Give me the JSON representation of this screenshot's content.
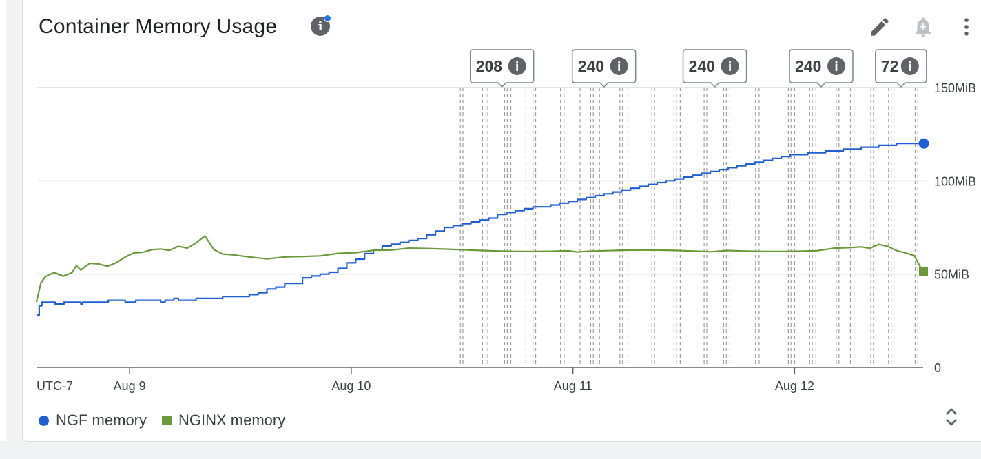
{
  "card": {
    "title": "Container Memory Usage",
    "info_icon": "info-icon"
  },
  "toolbar": {
    "edit_icon": "pencil-icon",
    "alert_icon": "add-alert-bell-icon",
    "more_icon": "more-vert-icon"
  },
  "legend": {
    "items": [
      {
        "label": "NGF memory",
        "color": "#1f5fd6",
        "shape": "circle"
      },
      {
        "label": "NGINX memory",
        "color": "#6a9a38",
        "shape": "square"
      }
    ],
    "expand_icon": "expand-collapse-icon"
  },
  "chart_data": {
    "type": "line",
    "title": "Container Memory Usage",
    "timezone_label": "UTC-7",
    "x_unit": "hours since Aug 8 19:45 (UTC-7)",
    "xlim": [
      0,
      100
    ],
    "x_ticks": [
      {
        "label": "Aug 9",
        "x": 10.5
      },
      {
        "label": "Aug 10",
        "x": 35.5
      },
      {
        "label": "Aug 11",
        "x": 60.5
      },
      {
        "label": "Aug 12",
        "x": 85.5
      }
    ],
    "ylim": [
      0,
      150
    ],
    "y_ticks": [
      {
        "label": "0",
        "value": 0
      },
      {
        "label": "50MiB",
        "value": 50
      },
      {
        "label": "100MiB",
        "value": 100
      },
      {
        "label": "150MiB",
        "value": 150
      }
    ],
    "grid": true,
    "y_axis_side": "right",
    "legend_position": "bottom-left",
    "series": [
      {
        "name": "NGF memory",
        "color": "#1f5fd6",
        "end_marker": "circle",
        "points": [
          [
            0,
            28
          ],
          [
            0.3,
            33
          ],
          [
            0.6,
            35
          ],
          [
            2,
            35
          ],
          [
            2.1,
            34
          ],
          [
            3,
            34
          ],
          [
            3.1,
            35
          ],
          [
            4,
            35
          ],
          [
            5,
            34
          ],
          [
            5.2,
            35
          ],
          [
            6.5,
            35
          ],
          [
            7,
            35
          ],
          [
            8,
            35
          ],
          [
            8.1,
            36
          ],
          [
            9.5,
            36
          ],
          [
            10,
            35
          ],
          [
            11,
            35
          ],
          [
            11.2,
            36
          ],
          [
            13,
            36
          ],
          [
            14,
            35
          ],
          [
            14.5,
            36
          ],
          [
            15.5,
            37
          ],
          [
            16,
            36
          ],
          [
            17,
            36
          ],
          [
            17.5,
            36
          ],
          [
            18,
            37
          ],
          [
            19,
            37
          ],
          [
            20,
            37
          ],
          [
            21,
            38
          ],
          [
            22,
            38
          ],
          [
            23,
            38
          ],
          [
            24,
            39
          ],
          [
            25,
            40
          ],
          [
            26,
            42
          ],
          [
            27,
            43
          ],
          [
            28,
            45
          ],
          [
            29,
            45
          ],
          [
            30,
            48
          ],
          [
            31,
            49
          ],
          [
            32,
            50
          ],
          [
            33,
            51
          ],
          [
            34,
            53
          ],
          [
            35,
            56
          ],
          [
            36,
            58
          ],
          [
            37,
            61
          ],
          [
            38,
            63
          ],
          [
            39,
            65
          ],
          [
            40,
            66
          ],
          [
            41,
            67
          ],
          [
            42,
            68
          ],
          [
            43,
            69
          ],
          [
            44,
            71
          ],
          [
            45,
            73
          ],
          [
            46,
            75
          ],
          [
            47,
            76
          ],
          [
            48,
            77
          ],
          [
            49,
            78
          ],
          [
            50,
            79
          ],
          [
            51,
            80
          ],
          [
            52,
            82
          ],
          [
            53,
            83
          ],
          [
            54,
            84
          ],
          [
            55,
            85
          ],
          [
            56,
            86
          ],
          [
            57,
            86
          ],
          [
            58,
            87
          ],
          [
            59,
            88
          ],
          [
            60,
            89
          ],
          [
            61,
            90
          ],
          [
            62,
            91
          ],
          [
            63,
            92
          ],
          [
            64,
            93
          ],
          [
            65,
            94
          ],
          [
            66,
            95
          ],
          [
            67,
            96
          ],
          [
            68,
            97
          ],
          [
            69,
            98
          ],
          [
            70,
            99
          ],
          [
            71,
            100
          ],
          [
            72,
            101
          ],
          [
            73,
            102
          ],
          [
            74,
            103
          ],
          [
            75,
            104
          ],
          [
            76,
            105
          ],
          [
            77,
            106
          ],
          [
            78,
            107
          ],
          [
            79,
            108
          ],
          [
            80,
            109
          ],
          [
            81,
            110
          ],
          [
            82,
            111
          ],
          [
            83,
            112
          ],
          [
            84,
            113
          ],
          [
            85,
            114
          ],
          [
            86,
            114
          ],
          [
            87,
            115
          ],
          [
            88,
            115
          ],
          [
            89,
            116
          ],
          [
            90,
            116
          ],
          [
            91,
            117
          ],
          [
            92,
            117
          ],
          [
            93,
            118
          ],
          [
            94,
            118
          ],
          [
            95,
            119
          ],
          [
            96,
            119
          ],
          [
            97,
            120
          ],
          [
            98,
            120
          ],
          [
            99,
            120
          ],
          [
            100,
            120
          ]
        ]
      },
      {
        "name": "NGINX memory",
        "color": "#6a9a38",
        "end_marker": "square",
        "points": [
          [
            0,
            35
          ],
          [
            0.5,
            45
          ],
          [
            1,
            48
          ],
          [
            2,
            50
          ],
          [
            3,
            48
          ],
          [
            4,
            50
          ],
          [
            4.5,
            54
          ],
          [
            5,
            52
          ],
          [
            6,
            56
          ],
          [
            7,
            56
          ],
          [
            8,
            55
          ],
          [
            9,
            57
          ],
          [
            10,
            60
          ],
          [
            11,
            62
          ],
          [
            12,
            62
          ],
          [
            13,
            63
          ],
          [
            14,
            63
          ],
          [
            15,
            62
          ],
          [
            16,
            64
          ],
          [
            17,
            63
          ],
          [
            18,
            66
          ],
          [
            19,
            70
          ],
          [
            20,
            63
          ],
          [
            21,
            61
          ],
          [
            22,
            61
          ],
          [
            24,
            60
          ],
          [
            26,
            59
          ],
          [
            28,
            60
          ],
          [
            30,
            60
          ],
          [
            32,
            60
          ],
          [
            34,
            61
          ],
          [
            36,
            61
          ],
          [
            38,
            62
          ],
          [
            40,
            62
          ],
          [
            42,
            63
          ],
          [
            44,
            63
          ],
          [
            46,
            63
          ],
          [
            48,
            63
          ],
          [
            50,
            63
          ],
          [
            52,
            63
          ],
          [
            54,
            63
          ],
          [
            56,
            63
          ],
          [
            58,
            63
          ],
          [
            60,
            63
          ],
          [
            61,
            62
          ],
          [
            62,
            62
          ],
          [
            64,
            62
          ],
          [
            66,
            62
          ],
          [
            68,
            62
          ],
          [
            70,
            62
          ],
          [
            72,
            62
          ],
          [
            74,
            62
          ],
          [
            76,
            62
          ],
          [
            78,
            63
          ],
          [
            80,
            63
          ],
          [
            82,
            63
          ],
          [
            84,
            63
          ],
          [
            86,
            63
          ],
          [
            88,
            63
          ],
          [
            90,
            64
          ],
          [
            92,
            64
          ],
          [
            93,
            64
          ],
          [
            94,
            63
          ],
          [
            95,
            65
          ],
          [
            96,
            64
          ],
          [
            97,
            62
          ],
          [
            98,
            61
          ],
          [
            99,
            60
          ],
          [
            100,
            51
          ]
        ]
      }
    ],
    "annotations": {
      "line_positions": [
        47.8,
        48.1,
        50.3,
        50.7,
        50.9,
        52.8,
        53.1,
        53.5,
        55.2,
        56.0,
        56.3,
        59.1,
        59.5,
        61.3,
        62.5,
        62.8,
        63.5,
        65.8,
        66.1,
        66.7,
        69.4,
        69.7,
        71.9,
        72.2,
        72.6,
        75.3,
        75.6,
        77.5,
        77.8,
        78.2,
        81.1,
        81.5,
        84.8,
        85.1,
        85.5,
        87.2,
        87.5,
        87.9,
        90.2,
        90.5,
        91.8,
        92.2,
        94.1,
        94.4,
        96.1,
        96.4,
        96.7,
        99.1,
        99.4
      ],
      "flags": [
        {
          "count": "208",
          "x": 52.5
        },
        {
          "count": "240",
          "x": 64.0
        },
        {
          "count": "240",
          "x": 76.5
        },
        {
          "count": "240",
          "x": 88.5
        },
        {
          "count": "72",
          "x": 97.5
        }
      ]
    }
  }
}
